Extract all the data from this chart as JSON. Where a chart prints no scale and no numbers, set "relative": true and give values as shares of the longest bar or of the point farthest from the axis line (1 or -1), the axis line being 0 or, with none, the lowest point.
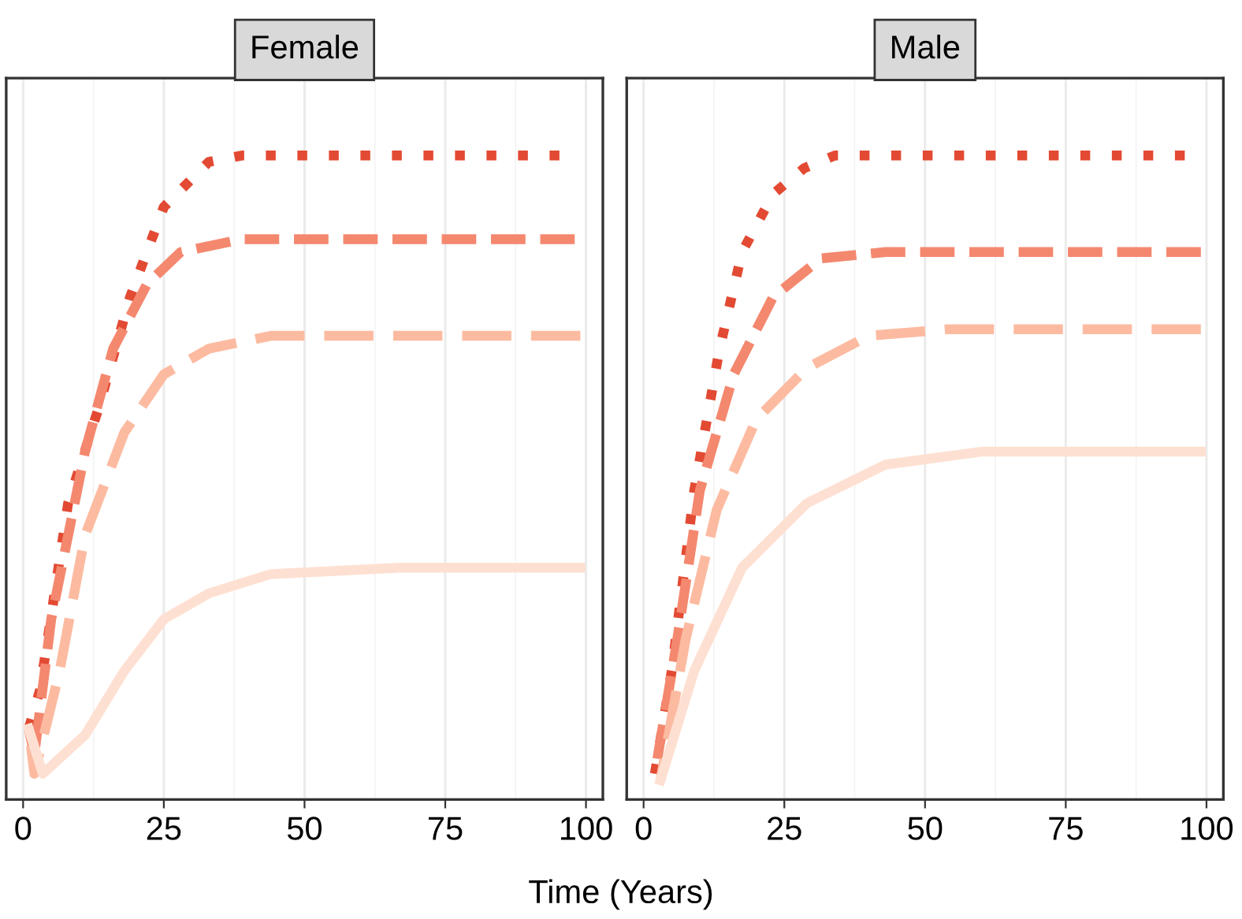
{
  "chart_data": [
    {
      "type": "line",
      "title": "Female",
      "xlabel": "Time (Years)",
      "relative": true,
      "xlim": [
        -3,
        103
      ],
      "xticks": [
        0,
        25,
        50,
        75,
        100
      ],
      "tick_labels": "x",
      "grid": "x",
      "legend": false,
      "series": [
        {
          "color": "#e34a33",
          "line_style": "dotted",
          "x": [
            1,
            3,
            8,
            13.5,
            19,
            25,
            33,
            39,
            98
          ],
          "values": [
            0.11,
            0.17,
            0.46,
            0.61,
            0.78,
            0.92,
            0.99,
            1.0,
            1.0
          ]
        },
        {
          "color": "#f4886f",
          "line_style": "dashed",
          "x": [
            1,
            2,
            5,
            11,
            16,
            22,
            28,
            39,
            98
          ],
          "values": [
            0.11,
            0.07,
            0.28,
            0.54,
            0.7,
            0.8,
            0.85,
            0.87,
            0.87
          ]
        },
        {
          "color": "#fcbba1",
          "line_style": "dashed",
          "x": [
            1,
            2,
            6.5,
            11,
            18,
            25,
            33,
            44,
            99
          ],
          "values": [
            0.11,
            0.04,
            0.2,
            0.41,
            0.57,
            0.66,
            0.7,
            0.72,
            0.72
          ]
        },
        {
          "color": "#fee0d2",
          "line_style": "solid",
          "x": [
            1,
            3.5,
            11,
            18,
            25,
            33,
            44,
            67,
            99
          ],
          "values": [
            0.11,
            0.04,
            0.1,
            0.2,
            0.28,
            0.32,
            0.35,
            0.36,
            0.36
          ]
        }
      ]
    },
    {
      "type": "line",
      "title": "Male",
      "relative": true,
      "xlim": [
        -3,
        103
      ],
      "xticks": [
        0,
        25,
        50,
        75,
        100
      ],
      "tick_labels": "x",
      "grid": "x",
      "legend": false,
      "series": [
        {
          "color": "#e34a33",
          "line_style": "dotted",
          "x": [
            2,
            5,
            9,
            13.5,
            17.5,
            23,
            28.5,
            34,
            99
          ],
          "values": [
            0.04,
            0.2,
            0.48,
            0.7,
            0.85,
            0.94,
            0.98,
            1.0,
            1.0
          ]
        },
        {
          "color": "#f4886f",
          "line_style": "dashed",
          "x": [
            2,
            6,
            10,
            16,
            23,
            31.5,
            43,
            99
          ],
          "values": [
            0.04,
            0.25,
            0.48,
            0.66,
            0.78,
            0.84,
            0.85,
            0.85
          ]
        },
        {
          "color": "#fcbba1",
          "line_style": "dashed",
          "x": [
            3,
            7.5,
            13,
            20,
            29,
            40,
            54,
            99
          ],
          "values": [
            0.03,
            0.25,
            0.45,
            0.59,
            0.67,
            0.72,
            0.73,
            0.73
          ]
        },
        {
          "color": "#fee0d2",
          "line_style": "solid",
          "x": [
            3,
            9,
            17.5,
            29,
            43,
            60,
            82.5,
            99
          ],
          "values": [
            0.03,
            0.2,
            0.36,
            0.46,
            0.52,
            0.54,
            0.54,
            0.54
          ]
        }
      ]
    }
  ]
}
